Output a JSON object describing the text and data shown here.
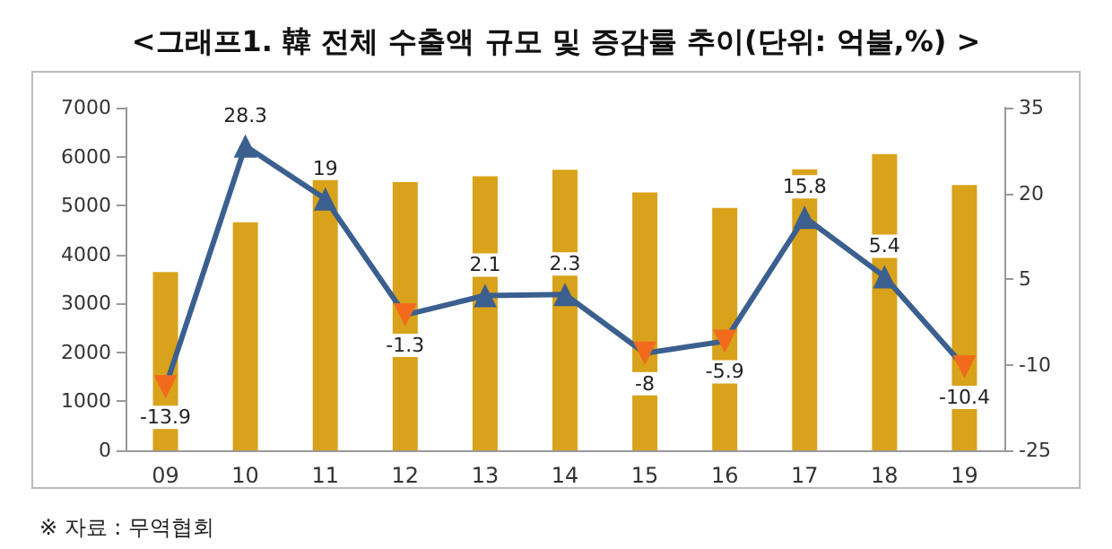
{
  "chart_data": {
    "type": "bar",
    "title": "<그래프1. 韓 전체 수출액 규모 및 증감률 추이(단위: 억불,%) >",
    "annotations": [
      "※ 자료 : 무역협회"
    ],
    "categories": [
      "09",
      "10",
      "11",
      "12",
      "13",
      "14",
      "15",
      "16",
      "17",
      "18",
      "19"
    ],
    "series": [
      {
        "color": "#d9a21b",
        "values": [
          3640,
          4660,
          5550,
          5480,
          5600,
          5730,
          5270,
          4950,
          5740,
          6050,
          5420
        ]
      },
      {
        "type": "line",
        "axis": "y2",
        "color": "#3b5f8f",
        "colors": [
          "#f26b1d",
          "#3b5f8f",
          "#3b5f8f",
          "#f26b1d",
          "#3b5f8f",
          "#3b5f8f",
          "#f26b1d",
          "#f26b1d",
          "#3b5f8f",
          "#3b5f8f",
          "#f26b1d"
        ],
        "marker": "triangle",
        "data_labels": true,
        "values": [
          -13.9,
          28.3,
          19,
          -1.3,
          2.1,
          2.3,
          -8,
          -5.9,
          15.8,
          5.4,
          -10.4
        ]
      }
    ],
    "ylim": [
      0,
      7000
    ],
    "yticks": [
      0,
      1000,
      2000,
      3000,
      4000,
      5000,
      6000,
      7000
    ],
    "y2lim": [
      -25,
      35
    ],
    "y2ticks": [
      -25,
      -10,
      5,
      20,
      35
    ],
    "grid": false
  }
}
